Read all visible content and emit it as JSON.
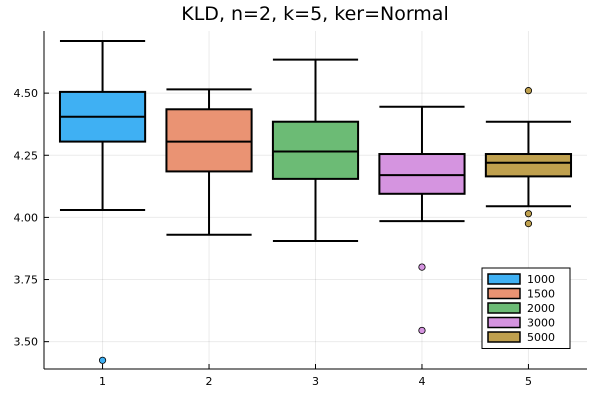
{
  "chart_data": {
    "type": "box",
    "title": "KLD, n=2, k=5, ker=Normal",
    "xlabel": "",
    "ylabel": "",
    "categories": [
      "1",
      "2",
      "3",
      "4",
      "5"
    ],
    "xlim": [
      0.45,
      5.55
    ],
    "ylim": [
      3.39,
      4.75
    ],
    "yticks": [
      3.5,
      3.75,
      4.0,
      4.25,
      4.5
    ],
    "ytick_labels": [
      "3.50",
      "3.75",
      "4.00",
      "4.25",
      "4.50"
    ],
    "grid": true,
    "legend_position": "bottom-right",
    "series": [
      {
        "name": "1000",
        "color": "#3fb0f3",
        "whisker_low": 4.03,
        "q1": 4.305,
        "median": 4.405,
        "q3": 4.505,
        "whisker_high": 4.71,
        "outliers": [
          3.425
        ]
      },
      {
        "name": "1500",
        "color": "#ea9373",
        "whisker_low": 3.93,
        "q1": 4.185,
        "median": 4.305,
        "q3": 4.435,
        "whisker_high": 4.515,
        "outliers": []
      },
      {
        "name": "2000",
        "color": "#6cbb75",
        "whisker_low": 3.905,
        "q1": 4.155,
        "median": 4.265,
        "q3": 4.385,
        "whisker_high": 4.635,
        "outliers": []
      },
      {
        "name": "3000",
        "color": "#d594e0",
        "whisker_low": 3.985,
        "q1": 4.095,
        "median": 4.17,
        "q3": 4.255,
        "whisker_high": 4.445,
        "outliers": [
          3.8,
          3.545
        ]
      },
      {
        "name": "5000",
        "color": "#bfa04e",
        "whisker_low": 4.045,
        "q1": 4.165,
        "median": 4.22,
        "q3": 4.255,
        "whisker_high": 4.385,
        "outliers": [
          4.51,
          4.015,
          3.975
        ]
      }
    ]
  }
}
